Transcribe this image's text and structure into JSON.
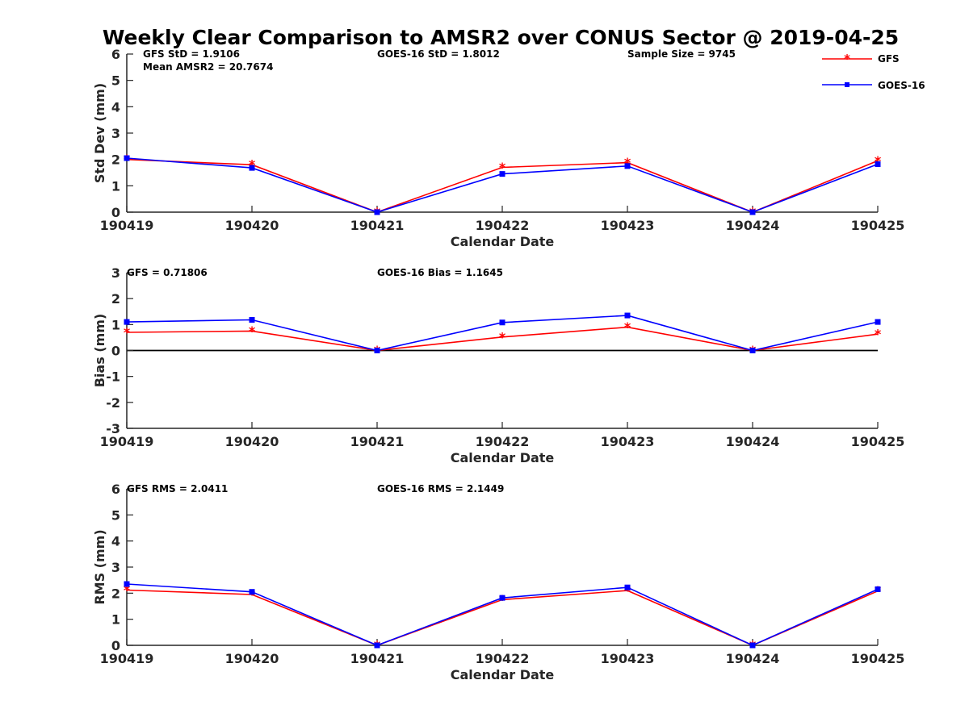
{
  "title": "Weekly Clear Comparison to AMSR2 over CONUS Sector @ 2019-04-25",
  "legend": [
    {
      "name": "GFS",
      "color": "#ff0000",
      "marker": "asterisk"
    },
    {
      "name": "GOES-16",
      "color": "#0000ff",
      "marker": "square"
    }
  ],
  "chart_data": [
    {
      "type": "line",
      "xlabel": "Calendar Date",
      "ylabel": "Std Dev (mm)",
      "ylim": [
        0,
        6
      ],
      "yticks": [
        0,
        1,
        2,
        3,
        4,
        5,
        6
      ],
      "zero_line": false,
      "x": [
        "190419",
        "190420",
        "190421",
        "190422",
        "190423",
        "190424",
        "190425"
      ],
      "series": [
        {
          "name": "GFS",
          "color": "#ff0000",
          "values": [
            2.0,
            1.8,
            0.0,
            1.7,
            1.88,
            0.0,
            1.95
          ]
        },
        {
          "name": "GOES-16",
          "color": "#0000ff",
          "values": [
            2.05,
            1.68,
            0.0,
            1.45,
            1.75,
            0.0,
            1.82
          ]
        }
      ],
      "annotations": {
        "left": [
          "GFS StD = 1.9106",
          "Mean AMSR2 = 20.7674"
        ],
        "middle": "GOES-16 StD = 1.8012",
        "right": "Sample Size = 9745"
      }
    },
    {
      "type": "line",
      "xlabel": "Calendar Date",
      "ylabel": "Bias (mm)",
      "ylim": [
        -3,
        3
      ],
      "yticks": [
        -3,
        -2,
        -1,
        0,
        1,
        2,
        3
      ],
      "zero_line": true,
      "x": [
        "190419",
        "190420",
        "190421",
        "190422",
        "190423",
        "190424",
        "190425"
      ],
      "series": [
        {
          "name": "GFS",
          "color": "#ff0000",
          "values": [
            0.7,
            0.75,
            0.0,
            0.52,
            0.9,
            0.0,
            0.63
          ]
        },
        {
          "name": "GOES-16",
          "color": "#0000ff",
          "values": [
            1.1,
            1.18,
            0.0,
            1.08,
            1.35,
            0.0,
            1.1
          ]
        }
      ],
      "annotations": {
        "left": [
          "GFS = 0.71806"
        ],
        "middle": "GOES-16 Bias  = 1.1645",
        "right": ""
      }
    },
    {
      "type": "line",
      "xlabel": "Calendar Date",
      "ylabel": "RMS (mm)",
      "ylim": [
        0,
        6
      ],
      "yticks": [
        0,
        1,
        2,
        3,
        4,
        5,
        6
      ],
      "zero_line": false,
      "x": [
        "190419",
        "190420",
        "190421",
        "190422",
        "190423",
        "190424",
        "190425"
      ],
      "series": [
        {
          "name": "GFS",
          "color": "#ff0000",
          "values": [
            2.12,
            1.95,
            0.0,
            1.75,
            2.1,
            0.0,
            2.08
          ]
        },
        {
          "name": "GOES-16",
          "color": "#0000ff",
          "values": [
            2.35,
            2.05,
            0.0,
            1.82,
            2.22,
            0.0,
            2.15
          ]
        }
      ],
      "annotations": {
        "left": [
          "GFS RMS = 2.0411"
        ],
        "middle": "GOES-16 RMS = 2.1449",
        "right": ""
      }
    }
  ]
}
